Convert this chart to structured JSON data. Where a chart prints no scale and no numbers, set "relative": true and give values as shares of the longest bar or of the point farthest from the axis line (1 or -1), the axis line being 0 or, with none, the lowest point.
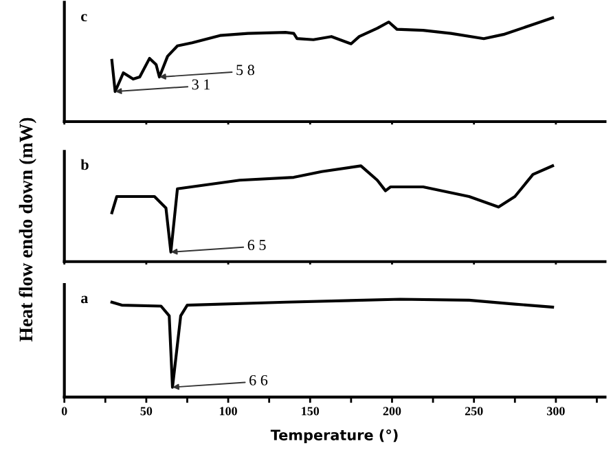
{
  "chart_data": [
    {
      "type": "line",
      "title": "c",
      "relative": true,
      "xlim": [
        0,
        330
      ],
      "tick_labels": false,
      "xticks": [
        0,
        50,
        100,
        150,
        200,
        250,
        300
      ],
      "series": [
        {
          "color": "#000000",
          "x": [
            29,
            31,
            36,
            42,
            46,
            52,
            56,
            58,
            63,
            69,
            78,
            95,
            112,
            135,
            140,
            142,
            152,
            163,
            175,
            180,
            191,
            198,
            203,
            219,
            236,
            256,
            268,
            285,
            298
          ],
          "values": [
            0.59,
            0.29,
            0.47,
            0.41,
            0.43,
            0.61,
            0.55,
            0.43,
            0.63,
            0.73,
            0.76,
            0.83,
            0.85,
            0.86,
            0.85,
            0.8,
            0.79,
            0.82,
            0.75,
            0.82,
            0.9,
            0.96,
            0.89,
            0.88,
            0.85,
            0.8,
            0.84,
            0.93,
            1.0
          ]
        }
      ],
      "annotations": [
        {
          "text": "3 1",
          "x": 31,
          "y": 0.29
        },
        {
          "text": "5 8",
          "x": 58,
          "y": 0.43
        }
      ]
    },
    {
      "type": "line",
      "title": "b",
      "relative": true,
      "xlim": [
        0,
        330
      ],
      "tick_labels": false,
      "xticks": [
        0,
        50,
        100,
        150,
        200,
        250,
        300
      ],
      "ylabel": "Heat flow endo down (mW)",
      "series": [
        {
          "color": "#000000",
          "x": [
            29,
            32,
            55,
            62,
            65,
            69,
            107,
            140,
            157,
            181,
            191,
            196,
            199,
            219,
            247,
            265,
            275,
            286,
            298
          ],
          "values": [
            0.51,
            0.68,
            0.68,
            0.56,
            0.1,
            0.76,
            0.85,
            0.88,
            0.94,
            1.0,
            0.85,
            0.74,
            0.78,
            0.78,
            0.68,
            0.57,
            0.68,
            0.91,
            1.0
          ]
        }
      ],
      "annotations": [
        {
          "text": "6 5",
          "x": 65,
          "y": 0.1
        }
      ]
    },
    {
      "type": "line",
      "title": "a",
      "relative": true,
      "xlim": [
        0,
        330
      ],
      "tick_labels": "x",
      "xlabel": "Temperature (°)",
      "xticks": [
        0,
        {
          "value": 25,
          "label": null
        },
        50,
        {
          "value": 75,
          "label": null
        },
        100,
        {
          "value": 125,
          "label": null
        },
        150,
        {
          "value": 175,
          "label": null
        },
        200,
        {
          "value": 225,
          "label": null
        },
        250,
        {
          "value": 275,
          "label": null
        },
        300,
        {
          "value": 325,
          "label": null
        }
      ],
      "series": [
        {
          "color": "#000000",
          "x": [
            29,
            35,
            59,
            64,
            66,
            71,
            75,
            135,
            205,
            247,
            275,
            298
          ],
          "values": [
            0.97,
            0.94,
            0.93,
            0.83,
            0.1,
            0.83,
            0.94,
            0.97,
            1.0,
            0.99,
            0.95,
            0.92
          ]
        }
      ],
      "annotations": [
        {
          "text": "6 6",
          "x": 66,
          "y": 0.1
        }
      ]
    }
  ]
}
